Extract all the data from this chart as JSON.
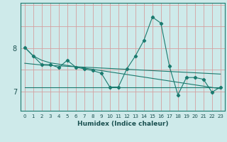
{
  "xlabel": "Humidex (Indice chaleur)",
  "bg_color": "#ceeaea",
  "grid_color_v": "#b8d8d8",
  "grid_color_h": "#e8b8b8",
  "line_color": "#1a7a6e",
  "x_values": [
    0,
    1,
    2,
    3,
    4,
    5,
    6,
    7,
    8,
    9,
    10,
    11,
    12,
    13,
    14,
    15,
    16,
    17,
    18,
    19,
    20,
    21,
    22,
    23
  ],
  "y_main": [
    8.02,
    7.82,
    7.62,
    7.62,
    7.55,
    7.72,
    7.56,
    7.52,
    7.48,
    7.42,
    7.1,
    7.1,
    7.52,
    7.82,
    8.18,
    8.72,
    8.58,
    7.58,
    6.92,
    7.32,
    7.32,
    7.28,
    6.98,
    7.1
  ],
  "y_trend1": [
    8.02,
    7.82,
    7.72,
    7.66,
    7.63,
    7.6,
    7.57,
    7.54,
    7.51,
    7.48,
    7.45,
    7.42,
    7.39,
    7.36,
    7.33,
    7.3,
    7.27,
    7.24,
    7.21,
    7.18,
    7.15,
    7.12,
    7.09,
    7.06
  ],
  "y_trend2": [
    7.65,
    7.63,
    7.61,
    7.6,
    7.59,
    7.58,
    7.57,
    7.56,
    7.55,
    7.54,
    7.53,
    7.52,
    7.51,
    7.5,
    7.49,
    7.48,
    7.47,
    7.46,
    7.45,
    7.44,
    7.43,
    7.42,
    7.41,
    7.4
  ],
  "y_trend3": [
    7.1,
    7.1,
    7.1,
    7.1,
    7.1,
    7.1,
    7.1,
    7.1,
    7.1,
    7.1,
    7.1,
    7.1,
    7.1,
    7.1,
    7.1,
    7.1,
    7.1,
    7.1,
    7.1,
    7.1,
    7.1,
    7.1,
    7.1,
    7.1
  ],
  "ylim": [
    6.55,
    9.05
  ],
  "yticks": [
    7,
    8
  ],
  "xlim": [
    -0.5,
    23.5
  ],
  "marker": "D",
  "markersize": 2.2,
  "linewidth": 0.8
}
